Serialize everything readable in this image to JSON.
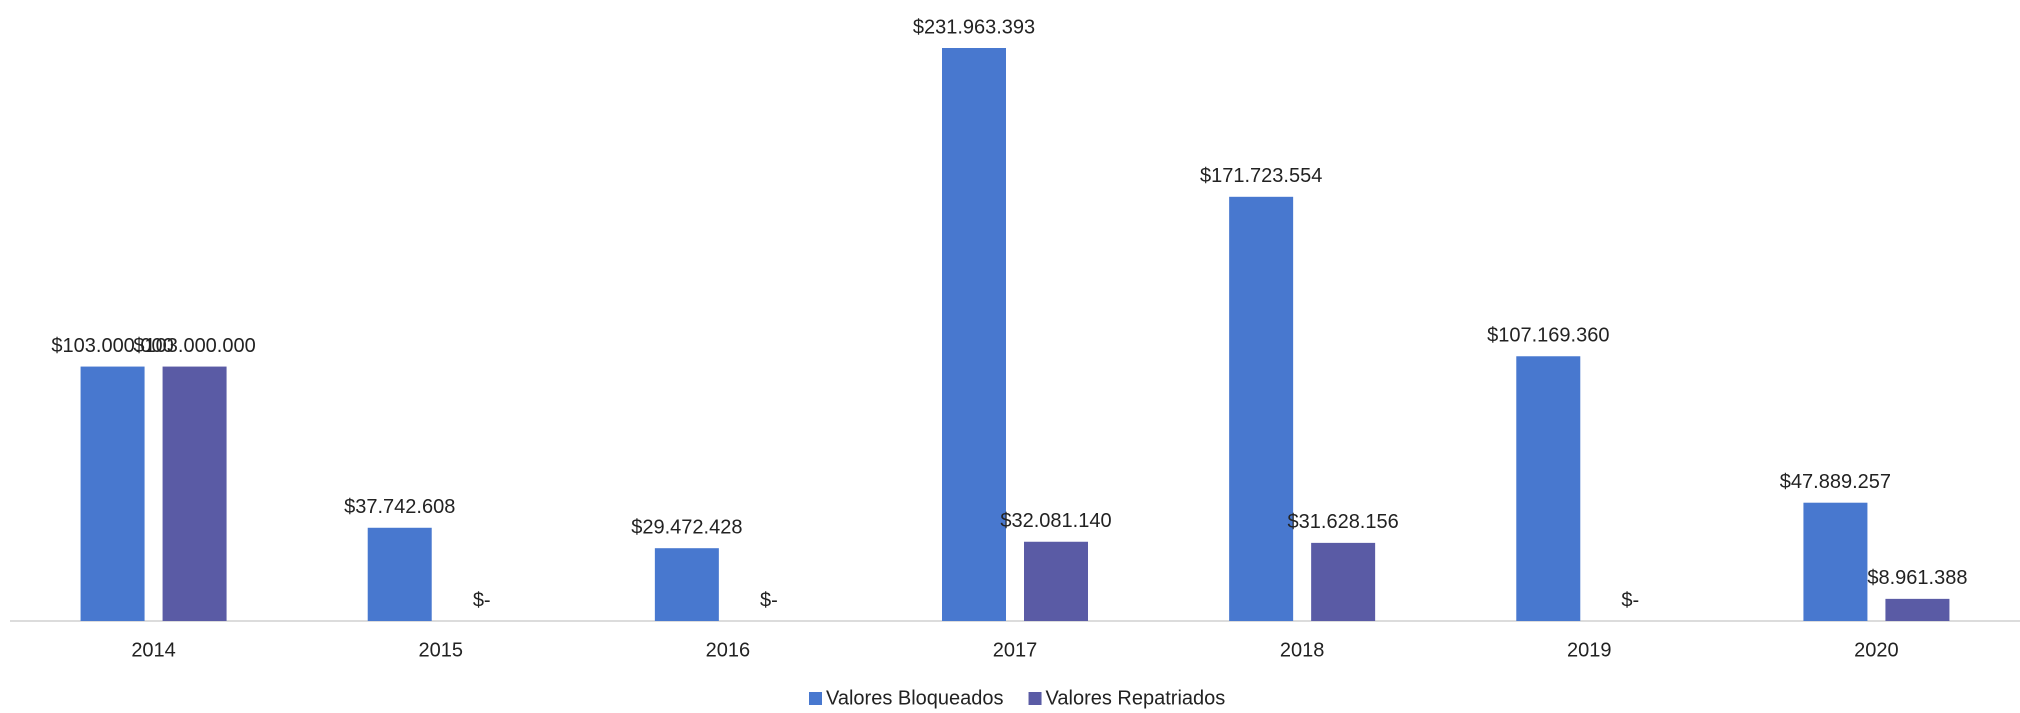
{
  "chart_data": {
    "type": "bar",
    "categories": [
      "2014",
      "2015",
      "2016",
      "2017",
      "2018",
      "2019",
      "2020"
    ],
    "series": [
      {
        "name": "Valores Bloqueados",
        "color": "#4878cf",
        "values": [
          103000000,
          37742608,
          29472428,
          231963393,
          171723554,
          107169360,
          47889257
        ],
        "value_labels": [
          "$103.000.000",
          "$37.742.608",
          "$29.472.428",
          "$231.963.393",
          "$171.723.554",
          "$107.169.360",
          "$47.889.257"
        ]
      },
      {
        "name": "Valores Repatriados",
        "color": "#5a5ba5",
        "values": [
          103000000,
          0,
          0,
          32081140,
          31628156,
          0,
          8961388
        ],
        "value_labels": [
          "$103.000.000",
          "$-",
          "$-",
          "$32.081.140",
          "$31.628.156",
          "$-",
          "$8.961.388"
        ]
      }
    ],
    "legend": "bottom"
  }
}
